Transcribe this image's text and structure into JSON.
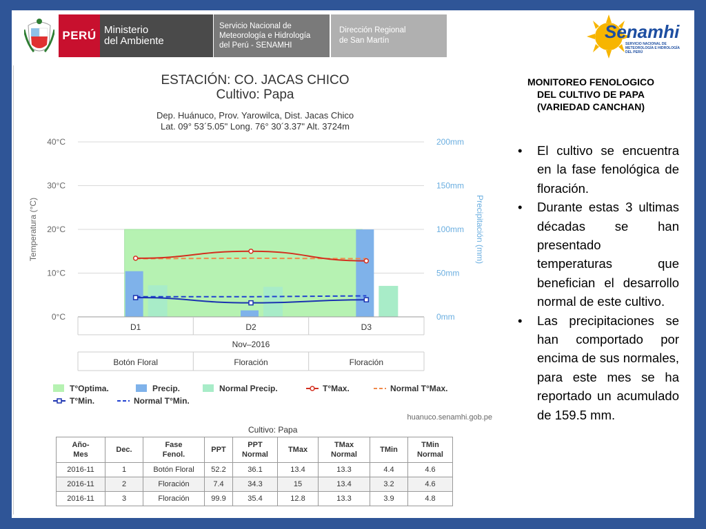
{
  "header": {
    "peru": "PERÚ",
    "ministry_line1": "Ministerio",
    "ministry_line2": "del Ambiente",
    "senamhi_line1": "Servicio Nacional de",
    "senamhi_line2": "Meteorología e Hidrología",
    "senamhi_line3": "del Perú - SENAMHI",
    "region_line1": "Dirección Regional",
    "region_line2": "de San Martín",
    "logo_text": "Senamhi",
    "logo_sub": "SERVICIO NACIONAL DE METEOROLOGÍA E HIDROLOGÍA DEL PERÚ"
  },
  "colors": {
    "frame": "#2f5597",
    "optima": "#b6f2b2",
    "precip": "#7fb2ea",
    "normal_precip": "#a8ecc8",
    "tmax": "#d32f1f",
    "normal_tmax": "#f08a4b",
    "tmin": "#1a32b0",
    "normal_tmin": "#2040d0"
  },
  "chart_data": {
    "type": "bar",
    "title": "ESTACIÓN: CO. JACAS CHICO",
    "subtitle": "Cultivo: Papa",
    "location_line1": "Dep. Huánuco, Prov. Yarowilca, Dist. Jacas Chico",
    "location_line2": "Lat. 09° 53´5.05\" Long. 76° 30´3.37\" Alt. 3724m",
    "categories": [
      "D1",
      "D2",
      "D3"
    ],
    "month_label": "Nov–2016",
    "phases": [
      "Botón Floral",
      "Floración",
      "Floración"
    ],
    "ylabel_left": "Temperatura (°C)",
    "ylabel_right": "Precipitación (mm)",
    "ylim_left": [
      0,
      40
    ],
    "ylim_right": [
      0,
      200
    ],
    "left_ticks": [
      "0°C",
      "10°C",
      "20°C",
      "30°C",
      "40°C"
    ],
    "right_ticks": [
      "0mm",
      "50mm",
      "100mm",
      "150mm",
      "200mm"
    ],
    "optima_range": [
      0,
      20
    ],
    "series": [
      {
        "name": "Precip.",
        "values": [
          52.2,
          7.4,
          99.9
        ]
      },
      {
        "name": "Normal Precip.",
        "values": [
          36.1,
          34.3,
          35.4
        ]
      },
      {
        "name": "T°Max.",
        "values": [
          13.4,
          15,
          12.8
        ]
      },
      {
        "name": "Normal T°Max.",
        "values": [
          13.3,
          13.4,
          13.3
        ]
      },
      {
        "name": "T°Min.",
        "values": [
          4.4,
          3.2,
          3.9
        ]
      },
      {
        "name": "Normal T°Min.",
        "values": [
          4.6,
          4.6,
          4.8
        ]
      }
    ],
    "legend": [
      "T°Optima.",
      "Precip.",
      "Normal Precip.",
      "T°Max.",
      "Normal T°Max.",
      "T°Min.",
      "Normal T°Min."
    ],
    "source": "huanuco.senamhi.gob.pe",
    "grid": true
  },
  "table": {
    "title": "Cultivo: Papa",
    "headers": [
      [
        "Año-",
        "Mes"
      ],
      [
        "Dec."
      ],
      [
        "Fase",
        "Fenol."
      ],
      [
        "PPT"
      ],
      [
        "PPT",
        "Normal"
      ],
      [
        "TMax"
      ],
      [
        "TMax",
        "Normal"
      ],
      [
        "TMin"
      ],
      [
        "TMin",
        "Normal"
      ]
    ],
    "rows": [
      [
        "2016-11",
        "1",
        "Botón Floral",
        "52.2",
        "36.1",
        "13.4",
        "13.3",
        "4.4",
        "4.6"
      ],
      [
        "2016-11",
        "2",
        "Floración",
        "7.4",
        "34.3",
        "15",
        "13.4",
        "3.2",
        "4.6"
      ],
      [
        "2016-11",
        "3",
        "Floración",
        "99.9",
        "35.4",
        "12.8",
        "13.3",
        "3.9",
        "4.8"
      ]
    ]
  },
  "right_panel": {
    "title_line1": "MONITOREO FENOLOGICO",
    "title_line2": "DEL CULTIVO DE PAPA",
    "title_line3": "(VARIEDAD CANCHAN)",
    "bullets": [
      "El cultivo se encuentra en la fase fenológica de floración.",
      "Durante estas 3 ultimas décadas se han presentado temperaturas que benefician el desarrollo normal de este cultivo.",
      "Las precipitaciones se han comportado por encima de sus normales, para este mes se ha reportado un acumulado de 159.5 mm."
    ]
  }
}
